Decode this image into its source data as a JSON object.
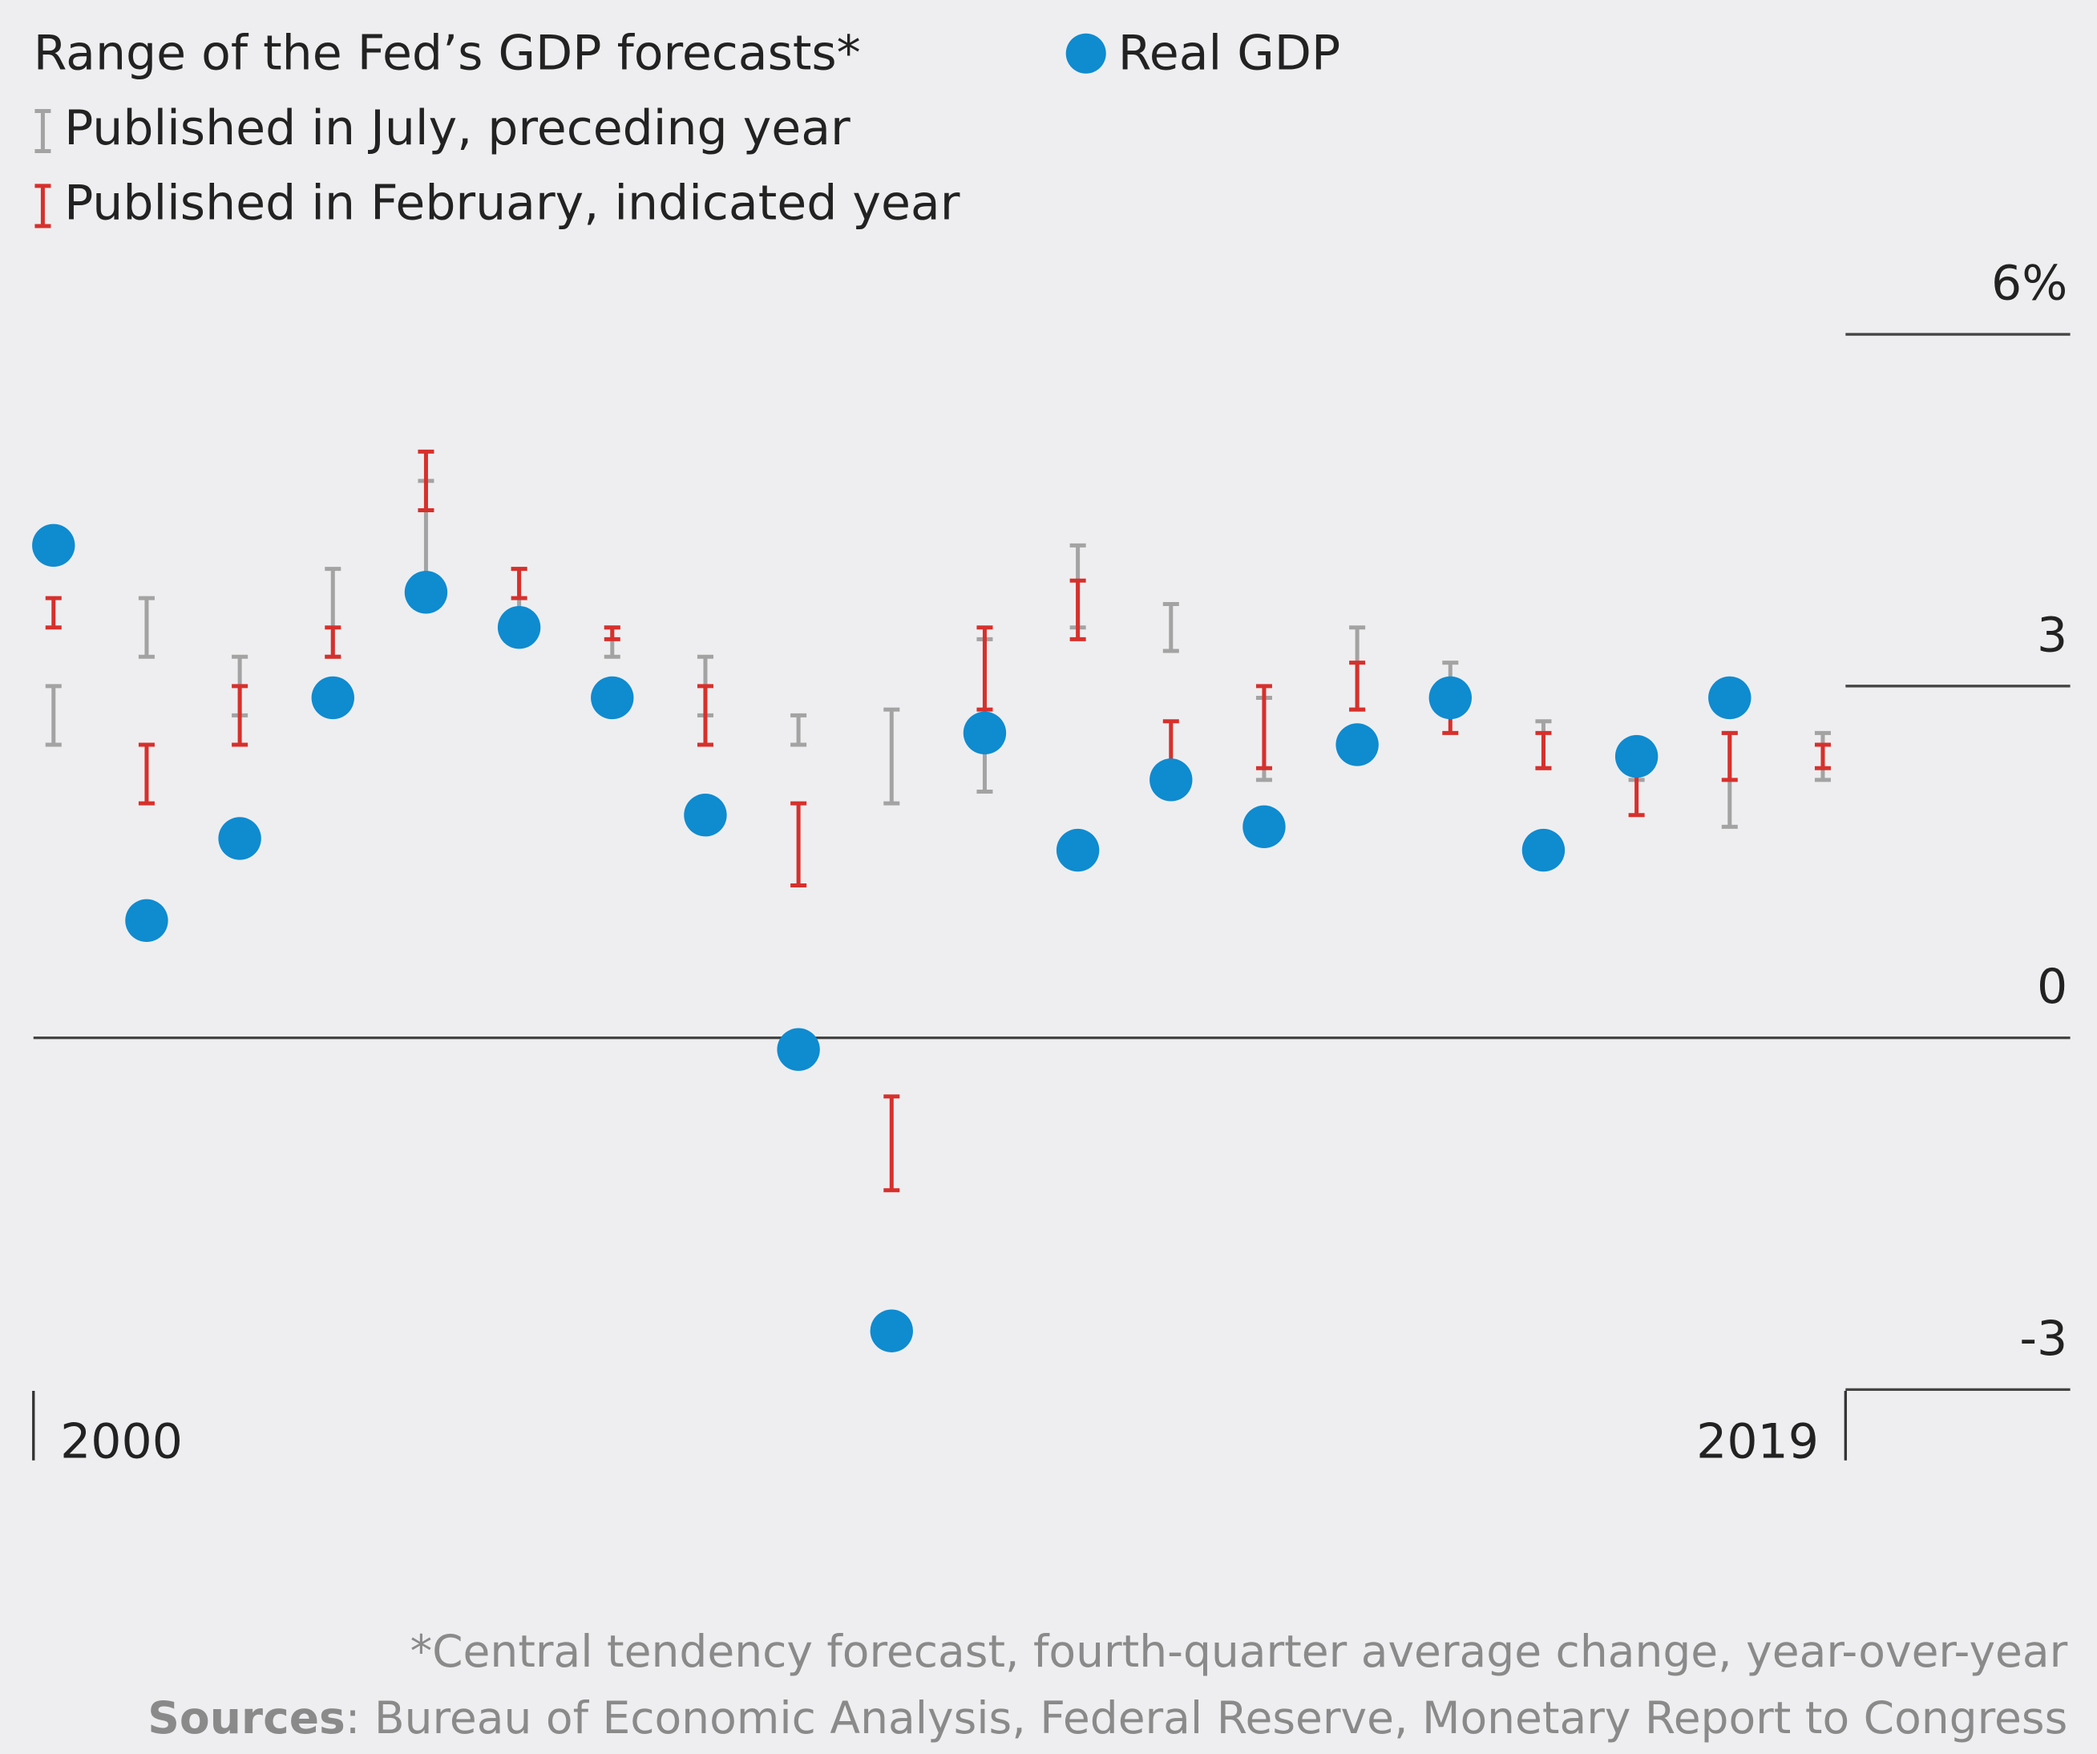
{
  "chart_data": {
    "type": "errorbar",
    "title": "Range of the Fed’s GDP forecasts*",
    "footnote": "*Central tendency forecast, fourth-quarter average change, year-over-year",
    "source_label": "Sources",
    "source": ": Bureau of Economic Analysis, Federal Reserve, Monetary Report to Congress",
    "categories": [
      "2000",
      null,
      null,
      null,
      null,
      null,
      null,
      null,
      null,
      null,
      null,
      null,
      null,
      null,
      null,
      null,
      null,
      null,
      null,
      "2019"
    ],
    "ylim": [
      -3,
      6
    ],
    "yticks": [
      {
        "value": 6,
        "label": "6%"
      },
      3,
      0,
      -3
    ],
    "ranges": [
      {
        "name": "Published in July, preceding year",
        "color": "#a3a3a3",
        "low": [
          2.5,
          3.25,
          2.75,
          3.25,
          3.75,
          3.5,
          3.25,
          2.75,
          2.5,
          2.0,
          2.1,
          3.5,
          3.3,
          2.2,
          2.8,
          2.8,
          2.3,
          2.2,
          1.8,
          2.2
        ],
        "high": [
          3.0,
          3.75,
          3.25,
          4.0,
          4.75,
          4.0,
          3.5,
          3.25,
          2.75,
          2.8,
          3.4,
          4.2,
          3.7,
          2.9,
          3.5,
          3.2,
          2.7,
          2.3,
          2.6,
          2.6
        ]
      },
      {
        "name": "Published in February, indicated year",
        "color": "#d7302c",
        "low": [
          3.5,
          2.0,
          2.5,
          3.25,
          4.5,
          3.75,
          3.4,
          2.5,
          1.3,
          -1.3,
          2.8,
          3.4,
          2.2,
          2.3,
          2.8,
          2.6,
          2.3,
          1.9,
          2.2,
          2.3
        ],
        "high": [
          3.75,
          2.5,
          3.0,
          3.5,
          5.0,
          4.0,
          3.5,
          3.0,
          2.0,
          -0.5,
          3.5,
          3.9,
          2.7,
          3.0,
          3.2,
          3.0,
          2.6,
          2.3,
          2.6,
          2.5
        ]
      }
    ],
    "series": [
      {
        "name": "Real GDP",
        "color": "#0f8bd0",
        "values": [
          4.2,
          1.0,
          1.7,
          2.9,
          3.8,
          3.5,
          2.9,
          1.9,
          -0.1,
          -2.5,
          2.6,
          1.6,
          2.2,
          1.8,
          2.5,
          2.9,
          1.6,
          2.4,
          2.9,
          null
        ]
      }
    ]
  }
}
